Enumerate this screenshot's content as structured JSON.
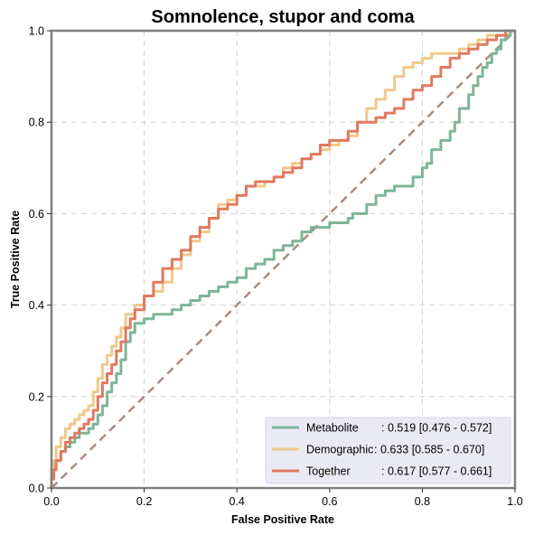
{
  "chart_data": {
    "type": "line",
    "title": "Somnolence, stupor and coma",
    "xlabel": "False Positive Rate",
    "ylabel": "True Positive Rate",
    "xlim": [
      0,
      1
    ],
    "ylim": [
      0,
      1
    ],
    "xticks": [
      "0.0",
      "0.2",
      "0.4",
      "0.6",
      "0.8",
      "1.0"
    ],
    "yticks": [
      "0.0",
      "0.2",
      "0.4",
      "0.6",
      "0.8",
      "1.0"
    ],
    "grid": true,
    "legend_position": "bottom-right",
    "diagonal": {
      "color": "#a88d80"
    },
    "series": [
      {
        "name": "Metabolite",
        "score": ": 0.519 [0.476 - 0.572]",
        "color": "#7db598",
        "points": [
          [
            0,
            0
          ],
          [
            0.005,
            0.02
          ],
          [
            0.01,
            0.04
          ],
          [
            0.02,
            0.06
          ],
          [
            0.03,
            0.08
          ],
          [
            0.04,
            0.09
          ],
          [
            0.05,
            0.1
          ],
          [
            0.06,
            0.11
          ],
          [
            0.07,
            0.12
          ],
          [
            0.08,
            0.12
          ],
          [
            0.09,
            0.13
          ],
          [
            0.1,
            0.14
          ],
          [
            0.11,
            0.16
          ],
          [
            0.12,
            0.18
          ],
          [
            0.13,
            0.21
          ],
          [
            0.14,
            0.23
          ],
          [
            0.15,
            0.25
          ],
          [
            0.16,
            0.28
          ],
          [
            0.17,
            0.32
          ],
          [
            0.18,
            0.34
          ],
          [
            0.2,
            0.36
          ],
          [
            0.22,
            0.37
          ],
          [
            0.24,
            0.38
          ],
          [
            0.26,
            0.38
          ],
          [
            0.28,
            0.39
          ],
          [
            0.3,
            0.4
          ],
          [
            0.32,
            0.41
          ],
          [
            0.34,
            0.42
          ],
          [
            0.36,
            0.43
          ],
          [
            0.38,
            0.44
          ],
          [
            0.4,
            0.45
          ],
          [
            0.42,
            0.46
          ],
          [
            0.44,
            0.48
          ],
          [
            0.46,
            0.49
          ],
          [
            0.48,
            0.5
          ],
          [
            0.5,
            0.52
          ],
          [
            0.52,
            0.53
          ],
          [
            0.54,
            0.54
          ],
          [
            0.56,
            0.56
          ],
          [
            0.58,
            0.57
          ],
          [
            0.6,
            0.57
          ],
          [
            0.62,
            0.58
          ],
          [
            0.64,
            0.58
          ],
          [
            0.65,
            0.59
          ],
          [
            0.66,
            0.6
          ],
          [
            0.68,
            0.6
          ],
          [
            0.7,
            0.62
          ],
          [
            0.72,
            0.64
          ],
          [
            0.74,
            0.65
          ],
          [
            0.76,
            0.66
          ],
          [
            0.78,
            0.66
          ],
          [
            0.8,
            0.68
          ],
          [
            0.81,
            0.7
          ],
          [
            0.82,
            0.71
          ],
          [
            0.84,
            0.74
          ],
          [
            0.86,
            0.76
          ],
          [
            0.87,
            0.78
          ],
          [
            0.88,
            0.8
          ],
          [
            0.9,
            0.83
          ],
          [
            0.91,
            0.86
          ],
          [
            0.92,
            0.88
          ],
          [
            0.93,
            0.9
          ],
          [
            0.94,
            0.92
          ],
          [
            0.95,
            0.93
          ],
          [
            0.96,
            0.95
          ],
          [
            0.97,
            0.96
          ],
          [
            0.98,
            0.98
          ],
          [
            0.99,
            0.99
          ],
          [
            1,
            1
          ]
        ]
      },
      {
        "name": "Demographic",
        "score": ": 0.633 [0.585 - 0.670]",
        "color": "#f0c98a",
        "points": [
          [
            0,
            0
          ],
          [
            0.005,
            0.04
          ],
          [
            0.01,
            0.06
          ],
          [
            0.02,
            0.09
          ],
          [
            0.03,
            0.11
          ],
          [
            0.04,
            0.13
          ],
          [
            0.05,
            0.14
          ],
          [
            0.06,
            0.15
          ],
          [
            0.07,
            0.16
          ],
          [
            0.08,
            0.17
          ],
          [
            0.09,
            0.18
          ],
          [
            0.1,
            0.21
          ],
          [
            0.11,
            0.24
          ],
          [
            0.12,
            0.27
          ],
          [
            0.13,
            0.29
          ],
          [
            0.14,
            0.31
          ],
          [
            0.15,
            0.33
          ],
          [
            0.16,
            0.35
          ],
          [
            0.18,
            0.38
          ],
          [
            0.2,
            0.4
          ],
          [
            0.22,
            0.42
          ],
          [
            0.24,
            0.43
          ],
          [
            0.26,
            0.45
          ],
          [
            0.28,
            0.48
          ],
          [
            0.3,
            0.51
          ],
          [
            0.32,
            0.54
          ],
          [
            0.34,
            0.56
          ],
          [
            0.36,
            0.59
          ],
          [
            0.38,
            0.62
          ],
          [
            0.4,
            0.63
          ],
          [
            0.42,
            0.64
          ],
          [
            0.44,
            0.66
          ],
          [
            0.46,
            0.66
          ],
          [
            0.48,
            0.67
          ],
          [
            0.5,
            0.68
          ],
          [
            0.52,
            0.7
          ],
          [
            0.54,
            0.71
          ],
          [
            0.56,
            0.72
          ],
          [
            0.58,
            0.73
          ],
          [
            0.6,
            0.74
          ],
          [
            0.62,
            0.75
          ],
          [
            0.64,
            0.76
          ],
          [
            0.66,
            0.77
          ],
          [
            0.68,
            0.8
          ],
          [
            0.7,
            0.83
          ],
          [
            0.72,
            0.85
          ],
          [
            0.74,
            0.87
          ],
          [
            0.76,
            0.9
          ],
          [
            0.78,
            0.92
          ],
          [
            0.8,
            0.93
          ],
          [
            0.82,
            0.94
          ],
          [
            0.84,
            0.95
          ],
          [
            0.86,
            0.95
          ],
          [
            0.88,
            0.95
          ],
          [
            0.9,
            0.96
          ],
          [
            0.92,
            0.97
          ],
          [
            0.94,
            0.98
          ],
          [
            0.96,
            0.99
          ],
          [
            0.98,
            0.99
          ],
          [
            1,
            1
          ]
        ]
      },
      {
        "name": "Together",
        "score": ": 0.617 [0.577 - 0.661]",
        "color": "#e07a5f",
        "points": [
          [
            0,
            0
          ],
          [
            0.005,
            0.02
          ],
          [
            0.01,
            0.04
          ],
          [
            0.02,
            0.06
          ],
          [
            0.03,
            0.08
          ],
          [
            0.04,
            0.1
          ],
          [
            0.05,
            0.11
          ],
          [
            0.06,
            0.12
          ],
          [
            0.07,
            0.13
          ],
          [
            0.08,
            0.14
          ],
          [
            0.09,
            0.15
          ],
          [
            0.1,
            0.17
          ],
          [
            0.11,
            0.2
          ],
          [
            0.12,
            0.23
          ],
          [
            0.13,
            0.25
          ],
          [
            0.14,
            0.27
          ],
          [
            0.15,
            0.3
          ],
          [
            0.16,
            0.32
          ],
          [
            0.17,
            0.35
          ],
          [
            0.18,
            0.37
          ],
          [
            0.2,
            0.39
          ],
          [
            0.22,
            0.42
          ],
          [
            0.24,
            0.45
          ],
          [
            0.26,
            0.48
          ],
          [
            0.28,
            0.5
          ],
          [
            0.3,
            0.52
          ],
          [
            0.32,
            0.55
          ],
          [
            0.34,
            0.57
          ],
          [
            0.36,
            0.59
          ],
          [
            0.38,
            0.61
          ],
          [
            0.4,
            0.62
          ],
          [
            0.42,
            0.64
          ],
          [
            0.44,
            0.66
          ],
          [
            0.46,
            0.67
          ],
          [
            0.48,
            0.67
          ],
          [
            0.5,
            0.68
          ],
          [
            0.52,
            0.69
          ],
          [
            0.54,
            0.7
          ],
          [
            0.56,
            0.72
          ],
          [
            0.58,
            0.73
          ],
          [
            0.6,
            0.75
          ],
          [
            0.62,
            0.76
          ],
          [
            0.64,
            0.76
          ],
          [
            0.66,
            0.78
          ],
          [
            0.68,
            0.8
          ],
          [
            0.7,
            0.8
          ],
          [
            0.72,
            0.81
          ],
          [
            0.74,
            0.82
          ],
          [
            0.76,
            0.83
          ],
          [
            0.78,
            0.85
          ],
          [
            0.8,
            0.87
          ],
          [
            0.82,
            0.88
          ],
          [
            0.84,
            0.9
          ],
          [
            0.86,
            0.92
          ],
          [
            0.88,
            0.94
          ],
          [
            0.9,
            0.95
          ],
          [
            0.92,
            0.96
          ],
          [
            0.94,
            0.97
          ],
          [
            0.96,
            0.98
          ],
          [
            0.98,
            0.99
          ],
          [
            1,
            1
          ]
        ]
      }
    ]
  }
}
